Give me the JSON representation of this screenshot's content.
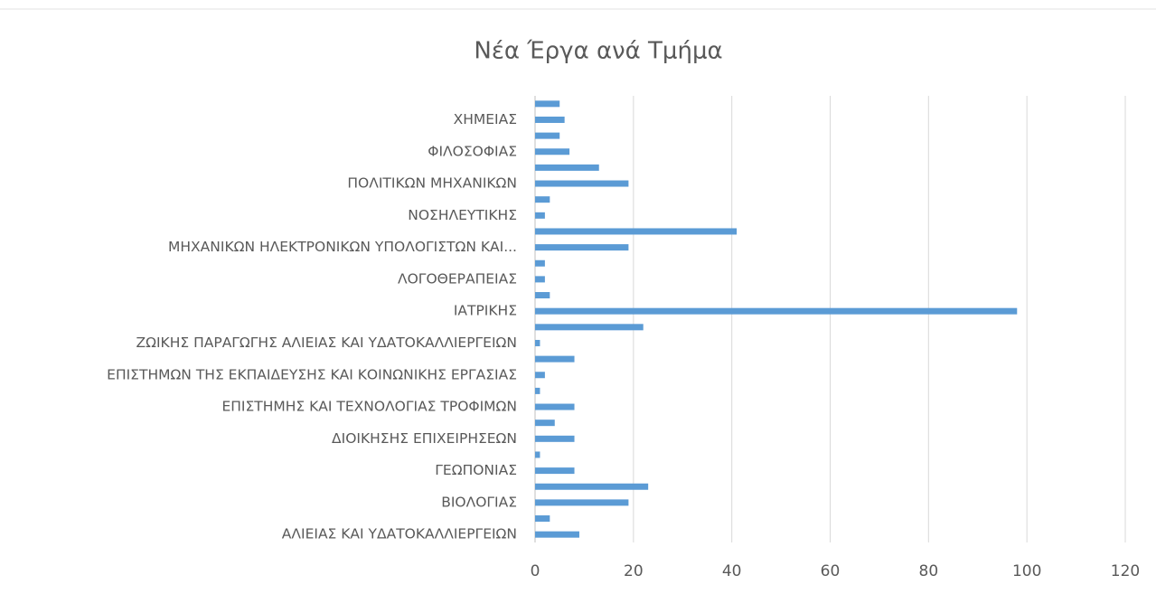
{
  "chart_data": {
    "type": "barh",
    "title": "Νέα Έργα ανά Τμήμα",
    "categories": [
      "ΑΛΙΕΙΑΣ ΚΑΙ ΥΔΑΤΟΚΑΛΛΙΕΡΓΕΙΩΝ",
      null,
      "ΒΙΟΛΟΓΙΑΣ",
      null,
      "ΓΕΩΠΟΝΙΑΣ",
      null,
      "ΔΙΟΙΚΗΣΗΣ ΕΠΙΧΕΙΡΗΣΕΩΝ",
      null,
      "ΕΠΙΣΤΗΜΗΣ ΚΑΙ ΤΕΧΝΟΛΟΓΙΑΣ ΤΡΟΦΙΜΩΝ",
      null,
      "ΕΠΙΣΤΗΜΩΝ ΤΗΣ ΕΚΠΑΙΔΕΥΣΗΣ ΚΑΙ ΚΟΙΝΩΝΙΚΗΣ ΕΡΓΑΣΙΑΣ",
      null,
      "ΖΩΙΚΗΣ ΠΑΡΑΓΩΓΗΣ ΑΛΙΕΙΑΣ ΚΑΙ ΥΔΑΤΟΚΑΛΛΙΕΡΓΕΙΩΝ",
      null,
      "ΙΑΤΡΙΚΗΣ",
      null,
      "ΛΟΓΟΘΕΡΑΠΕΙΑΣ",
      null,
      "ΜΗΧΑΝΙΚΩΝ ΗΛΕΚΤΡΟΝΙΚΩΝ ΥΠΟΛΟΓΙΣΤΩΝ ΚΑΙ...",
      null,
      "ΝΟΣΗΛΕΥΤΙΚΗΣ",
      null,
      "ΠΟΛΙΤΙΚΩΝ ΜΗΧΑΝΙΚΩΝ",
      null,
      "ΦΙΛΟΣΟΦΙΑΣ",
      null,
      "ΧΗΜΕΙΑΣ",
      null
    ],
    "values": [
      9,
      3,
      19,
      23,
      8,
      1,
      8,
      4,
      8,
      1,
      2,
      8,
      1,
      22,
      98,
      3,
      2,
      2,
      19,
      41,
      2,
      3,
      19,
      13,
      7,
      5,
      6,
      5
    ],
    "color": "#5b9bd5",
    "xlim": [
      0,
      120
    ],
    "xticks": [
      0,
      20,
      40,
      60,
      80,
      100,
      120
    ],
    "grid": true
  }
}
